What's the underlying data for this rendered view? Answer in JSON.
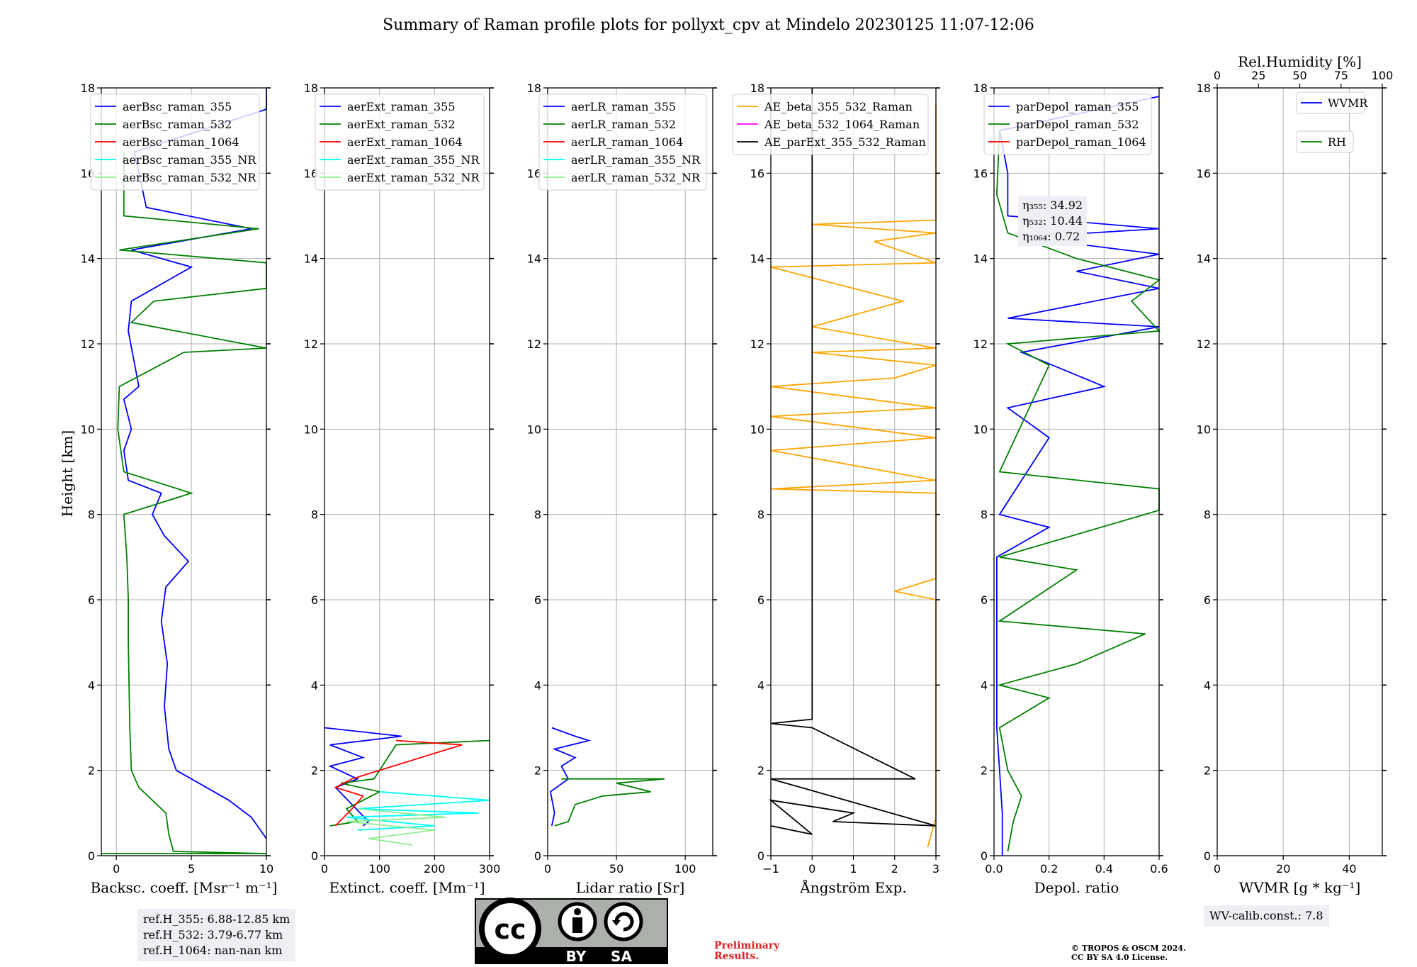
{
  "title": "Summary of Raman profile plots for pollyxt_cpv at Mindelo 20230125 11:07-12:06",
  "ylabel": "Height [km]",
  "yticks": [
    "0",
    "2",
    "4",
    "6",
    "8",
    "10",
    "12",
    "14",
    "16",
    "18"
  ],
  "colors": {
    "blue": "#0000ff",
    "green": "#008000",
    "red": "#ff0000",
    "cyan": "#00ffff",
    "lightgreen": "#90ee90",
    "orange": "#ffa500",
    "magenta": "#ff00ff",
    "black": "#000000",
    "grid": "#b0b0b0",
    "infobox": "#eeeff4",
    "preliminary": "#e32020"
  },
  "chart_data": [
    {
      "type": "line",
      "id": "bsc",
      "xlabel": "Backsc. coeff. [Msr⁻¹ m⁻¹]",
      "xlim": [
        -1,
        10
      ],
      "ylim": [
        0,
        18
      ],
      "xticks": [
        {
          "v": 0,
          "t": "0"
        },
        {
          "v": 5,
          "t": "5"
        },
        {
          "v": 10,
          "t": "10"
        }
      ],
      "legend": [
        "aerBsc_raman_355",
        "aerBsc_raman_532",
        "aerBsc_raman_1064",
        "aerBsc_raman_355_NR",
        "aerBsc_raman_532_NR"
      ],
      "legend_colors": [
        "blue",
        "green",
        "red",
        "cyan",
        "lightgreen"
      ],
      "series": [
        {
          "name": "aerBsc_raman_355",
          "color": "blue",
          "points": [
            [
              10,
              0.4
            ],
            [
              9,
              0.9
            ],
            [
              7.5,
              1.3
            ],
            [
              5.5,
              1.7
            ],
            [
              4,
              2.0
            ],
            [
              3.5,
              2.5
            ],
            [
              3.2,
              3.5
            ],
            [
              3.4,
              4.5
            ],
            [
              3.0,
              5.5
            ],
            [
              3.3,
              6.3
            ],
            [
              4.8,
              6.9
            ],
            [
              3.2,
              7.5
            ],
            [
              2.4,
              8.0
            ],
            [
              3.0,
              8.5
            ],
            [
              0.8,
              8.8
            ],
            [
              0.5,
              9.5
            ],
            [
              1.0,
              10.0
            ],
            [
              0.5,
              10.7
            ],
            [
              1.5,
              11.0
            ],
            [
              0.8,
              12.3
            ],
            [
              1.0,
              13.0
            ],
            [
              5.0,
              13.8
            ],
            [
              1.0,
              14.2
            ],
            [
              9.0,
              14.7
            ],
            [
              2.0,
              15.2
            ],
            [
              1.2,
              16.5
            ],
            [
              10,
              17.5
            ],
            [
              10,
              18
            ]
          ]
        },
        {
          "name": "aerBsc_raman_532",
          "color": "green",
          "points": [
            [
              -1,
              0.05
            ],
            [
              10,
              0.05
            ],
            [
              3.8,
              0.1
            ],
            [
              3.5,
              0.5
            ],
            [
              3.3,
              1.0
            ],
            [
              1.5,
              1.6
            ],
            [
              1.0,
              2.0
            ],
            [
              0.9,
              3.0
            ],
            [
              0.8,
              5.0
            ],
            [
              0.8,
              6.0
            ],
            [
              0.7,
              7.0
            ],
            [
              0.5,
              8.0
            ],
            [
              5.0,
              8.5
            ],
            [
              0.5,
              9.0
            ],
            [
              0.1,
              10.0
            ],
            [
              0.2,
              11.0
            ],
            [
              4.5,
              11.8
            ],
            [
              10,
              11.9
            ],
            [
              1.0,
              12.5
            ],
            [
              2.5,
              13.0
            ],
            [
              10,
              13.3
            ],
            [
              10,
              13.7
            ],
            [
              10,
              13.9
            ],
            [
              0.2,
              14.2
            ],
            [
              9.5,
              14.7
            ],
            [
              0.5,
              15.0
            ],
            [
              0.5,
              16.5
            ]
          ]
        }
      ],
      "infobox": [
        "ref.H_355: 6.88-12.85 km",
        "ref.H_532: 3.79-6.77 km",
        "ref.H_1064: nan-nan km"
      ]
    },
    {
      "type": "line",
      "id": "ext",
      "xlabel": "Extinct. coeff. [Mm⁻¹]",
      "xlim": [
        0,
        300
      ],
      "ylim": [
        0,
        18
      ],
      "xticks": [
        {
          "v": 0,
          "t": "0"
        },
        {
          "v": 100,
          "t": "100"
        },
        {
          "v": 200,
          "t": "200"
        },
        {
          "v": 300,
          "t": "300"
        }
      ],
      "legend": [
        "aerExt_raman_355",
        "aerExt_raman_532",
        "aerExt_raman_1064",
        "aerExt_raman_355_NR",
        "aerExt_raman_532_NR"
      ],
      "legend_colors": [
        "blue",
        "green",
        "red",
        "cyan",
        "lightgreen"
      ],
      "series": [
        {
          "name": "aerExt_raman_355",
          "color": "blue",
          "points": [
            [
              70,
              0.7
            ],
            [
              80,
              0.8
            ],
            [
              50,
              1.2
            ],
            [
              20,
              1.6
            ],
            [
              60,
              1.8
            ],
            [
              10,
              2.1
            ],
            [
              70,
              2.3
            ],
            [
              10,
              2.6
            ],
            [
              140,
              2.8
            ],
            [
              0,
              3.0
            ]
          ]
        },
        {
          "name": "aerExt_raman_532",
          "color": "green",
          "points": [
            [
              10,
              0.7
            ],
            [
              60,
              0.8
            ],
            [
              40,
              1.1
            ],
            [
              100,
              1.5
            ],
            [
              30,
              1.7
            ],
            [
              90,
              1.8
            ],
            [
              130,
              2.6
            ],
            [
              300,
              2.7
            ]
          ]
        },
        {
          "name": "aerExt_raman_1064",
          "color": "red",
          "points": [
            [
              20,
              0.7
            ],
            [
              50,
              1.1
            ],
            [
              70,
              1.4
            ],
            [
              20,
              1.6
            ],
            [
              50,
              1.8
            ],
            [
              250,
              2.6
            ],
            [
              130,
              2.7
            ]
          ]
        },
        {
          "name": "aerExt_raman_355_NR",
          "color": "cyan",
          "points": [
            [
              60,
              0.6
            ],
            [
              200,
              0.7
            ],
            [
              40,
              0.9
            ],
            [
              280,
              1.0
            ],
            [
              60,
              1.1
            ],
            [
              300,
              1.3
            ],
            [
              100,
              1.5
            ]
          ]
        },
        {
          "name": "aerExt_raman_532_NR",
          "color": "lightgreen",
          "points": [
            [
              160,
              0.25
            ],
            [
              80,
              0.4
            ],
            [
              200,
              0.6
            ],
            [
              40,
              0.8
            ],
            [
              220,
              0.9
            ],
            [
              60,
              1.1
            ]
          ]
        }
      ]
    },
    {
      "type": "line",
      "id": "lr",
      "xlabel": "Lidar ratio [Sr]",
      "xlim": [
        0,
        120
      ],
      "ylim": [
        0,
        18
      ],
      "xticks": [
        {
          "v": 0,
          "t": "0"
        },
        {
          "v": 50,
          "t": "50"
        },
        {
          "v": 100,
          "t": "100"
        }
      ],
      "legend": [
        "aerLR_raman_355",
        "aerLR_raman_532",
        "aerLR_raman_1064",
        "aerLR_raman_355_NR",
        "aerLR_raman_532_NR"
      ],
      "legend_colors": [
        "blue",
        "green",
        "red",
        "cyan",
        "lightgreen"
      ],
      "series": [
        {
          "name": "aerLR_raman_355",
          "color": "blue",
          "points": [
            [
              3,
              0.7
            ],
            [
              5,
              1.0
            ],
            [
              2,
              1.5
            ],
            [
              15,
              1.8
            ],
            [
              10,
              2.1
            ],
            [
              20,
              2.3
            ],
            [
              5,
              2.5
            ],
            [
              30,
              2.7
            ],
            [
              20,
              2.8
            ],
            [
              3,
              3.0
            ]
          ]
        },
        {
          "name": "aerLR_raman_532",
          "color": "green",
          "points": [
            [
              5,
              0.7
            ],
            [
              15,
              0.8
            ],
            [
              20,
              1.2
            ],
            [
              40,
              1.4
            ],
            [
              75,
              1.5
            ],
            [
              50,
              1.7
            ],
            [
              85,
              1.8
            ],
            [
              10,
              1.8
            ]
          ]
        }
      ]
    },
    {
      "type": "line",
      "id": "ae",
      "xlabel": "Ångström Exp.",
      "xlim": [
        -1,
        3
      ],
      "ylim": [
        0,
        18
      ],
      "xticks": [
        {
          "v": -1,
          "t": "−1"
        },
        {
          "v": 0,
          "t": "0"
        },
        {
          "v": 1,
          "t": "1"
        },
        {
          "v": 2,
          "t": "2"
        },
        {
          "v": 3,
          "t": "3"
        }
      ],
      "legend": [
        "AE_beta_355_532_Raman",
        "AE_beta_532_1064_Raman",
        "AE_parExt_355_532_Raman"
      ],
      "legend_colors": [
        "orange",
        "magenta",
        "black"
      ],
      "series": [
        {
          "name": "AE_beta_355_532_Raman",
          "color": "orange",
          "points": [
            [
              2.8,
              0.2
            ],
            [
              3.0,
              0.9
            ],
            [
              3.0,
              6.0
            ],
            [
              2.0,
              6.2
            ],
            [
              3.0,
              6.5
            ],
            [
              3.0,
              8.5
            ],
            [
              -1,
              8.6
            ],
            [
              3.0,
              8.8
            ],
            [
              -1,
              9.5
            ],
            [
              3.0,
              9.8
            ],
            [
              -1,
              10.3
            ],
            [
              3.0,
              10.5
            ],
            [
              -1,
              11.0
            ],
            [
              2.0,
              11.2
            ],
            [
              3.0,
              11.5
            ],
            [
              0.0,
              11.8
            ],
            [
              3.0,
              11.9
            ],
            [
              0.0,
              12.4
            ],
            [
              2.2,
              13.0
            ],
            [
              -1,
              13.8
            ],
            [
              3.0,
              13.9
            ],
            [
              1.5,
              14.4
            ],
            [
              3.0,
              14.6
            ],
            [
              0.0,
              14.8
            ],
            [
              3.0,
              14.9
            ],
            [
              3.0,
              17.6
            ]
          ]
        },
        {
          "name": "AE_parExt_355_532_Raman",
          "color": "black",
          "points": [
            [
              -1,
              0.7
            ],
            [
              0.0,
              0.5
            ],
            [
              -1,
              1.3
            ],
            [
              1.0,
              1.0
            ],
            [
              0.5,
              0.8
            ],
            [
              3.0,
              0.7
            ],
            [
              -1,
              1.8
            ],
            [
              2.5,
              1.8
            ],
            [
              0.0,
              3.0
            ],
            [
              -1,
              3.1
            ],
            [
              0.0,
              3.2
            ],
            [
              0.0,
              18
            ]
          ]
        }
      ]
    },
    {
      "type": "line",
      "id": "depol",
      "xlabel": "Depol. ratio",
      "xlim": [
        0,
        0.6
      ],
      "ylim": [
        0,
        18
      ],
      "xticks": [
        {
          "v": 0,
          "t": "0.0"
        },
        {
          "v": 0.2,
          "t": "0.2"
        },
        {
          "v": 0.4,
          "t": "0.4"
        },
        {
          "v": 0.6,
          "t": "0.6"
        }
      ],
      "legend": [
        "parDepol_raman_355",
        "parDepol_raman_532",
        "parDepol_raman_1064"
      ],
      "legend_colors": [
        "blue",
        "green",
        "red"
      ],
      "eta": [
        "η₃₅₅: 34.92",
        "η₅₃₂: 10.44",
        "η₁₀₆₄: 0.72"
      ],
      "series": [
        {
          "name": "parDepol_raman_355",
          "color": "blue",
          "points": [
            [
              0.03,
              0
            ],
            [
              0.03,
              1.0
            ],
            [
              0.02,
              2.0
            ],
            [
              0.01,
              3.0
            ],
            [
              0.01,
              7.0
            ],
            [
              0.2,
              7.7
            ],
            [
              0.02,
              8.0
            ],
            [
              0.2,
              9.8
            ],
            [
              0.05,
              10.5
            ],
            [
              0.4,
              11.0
            ],
            [
              0.1,
              11.8
            ],
            [
              0.6,
              12.4
            ],
            [
              0.05,
              12.6
            ],
            [
              0.6,
              13.3
            ],
            [
              0.3,
              13.7
            ],
            [
              0.6,
              14.1
            ],
            [
              0.1,
              14.5
            ],
            [
              0.6,
              14.7
            ],
            [
              0.05,
              15.0
            ],
            [
              0.05,
              16.0
            ],
            [
              0.02,
              17.0
            ],
            [
              0.6,
              17.8
            ]
          ]
        },
        {
          "name": "parDepol_raman_532",
          "color": "green",
          "points": [
            [
              0.05,
              0.1
            ],
            [
              0.07,
              0.8
            ],
            [
              0.1,
              1.4
            ],
            [
              0.05,
              2.0
            ],
            [
              0.02,
              3.0
            ],
            [
              0.2,
              3.7
            ],
            [
              0.02,
              4.0
            ],
            [
              0.3,
              4.5
            ],
            [
              0.55,
              5.2
            ],
            [
              0.02,
              5.5
            ],
            [
              0.3,
              6.7
            ],
            [
              0.02,
              7.0
            ],
            [
              0.6,
              8.1
            ],
            [
              0.6,
              8.6
            ],
            [
              0.02,
              9.0
            ],
            [
              0.2,
              11.5
            ],
            [
              0.05,
              12.0
            ],
            [
              0.6,
              12.3
            ],
            [
              0.5,
              13.0
            ],
            [
              0.6,
              13.5
            ],
            [
              0.3,
              14.0
            ],
            [
              0.05,
              14.6
            ],
            [
              0.01,
              15.5
            ],
            [
              0.02,
              17.0
            ]
          ]
        }
      ]
    },
    {
      "type": "line",
      "id": "wv",
      "xlabel": "WVMR [g * kg⁻¹]",
      "xlim": [
        0,
        50
      ],
      "ylim": [
        0,
        18
      ],
      "xticks": [
        {
          "v": 0,
          "t": "0"
        },
        {
          "v": 20,
          "t": "20"
        },
        {
          "v": 40,
          "t": "40"
        }
      ],
      "top_xlabel": "Rel.Humidity [%]",
      "top_xticks": [
        "0",
        "25",
        "50",
        "75",
        "100"
      ],
      "legend": [
        "WVMR",
        "RH"
      ],
      "legend_colors": [
        "blue",
        "green"
      ],
      "series": [],
      "infobox": [
        "WV-calib.const.: 7.8"
      ]
    }
  ],
  "license": {
    "cc": "cc",
    "by": "BY",
    "sa": "SA"
  },
  "preliminary": [
    "Preliminary",
    "Results."
  ],
  "copyright": [
    "© TROPOS & OSCM 2024.",
    "CC BY SA 4.0 License."
  ]
}
